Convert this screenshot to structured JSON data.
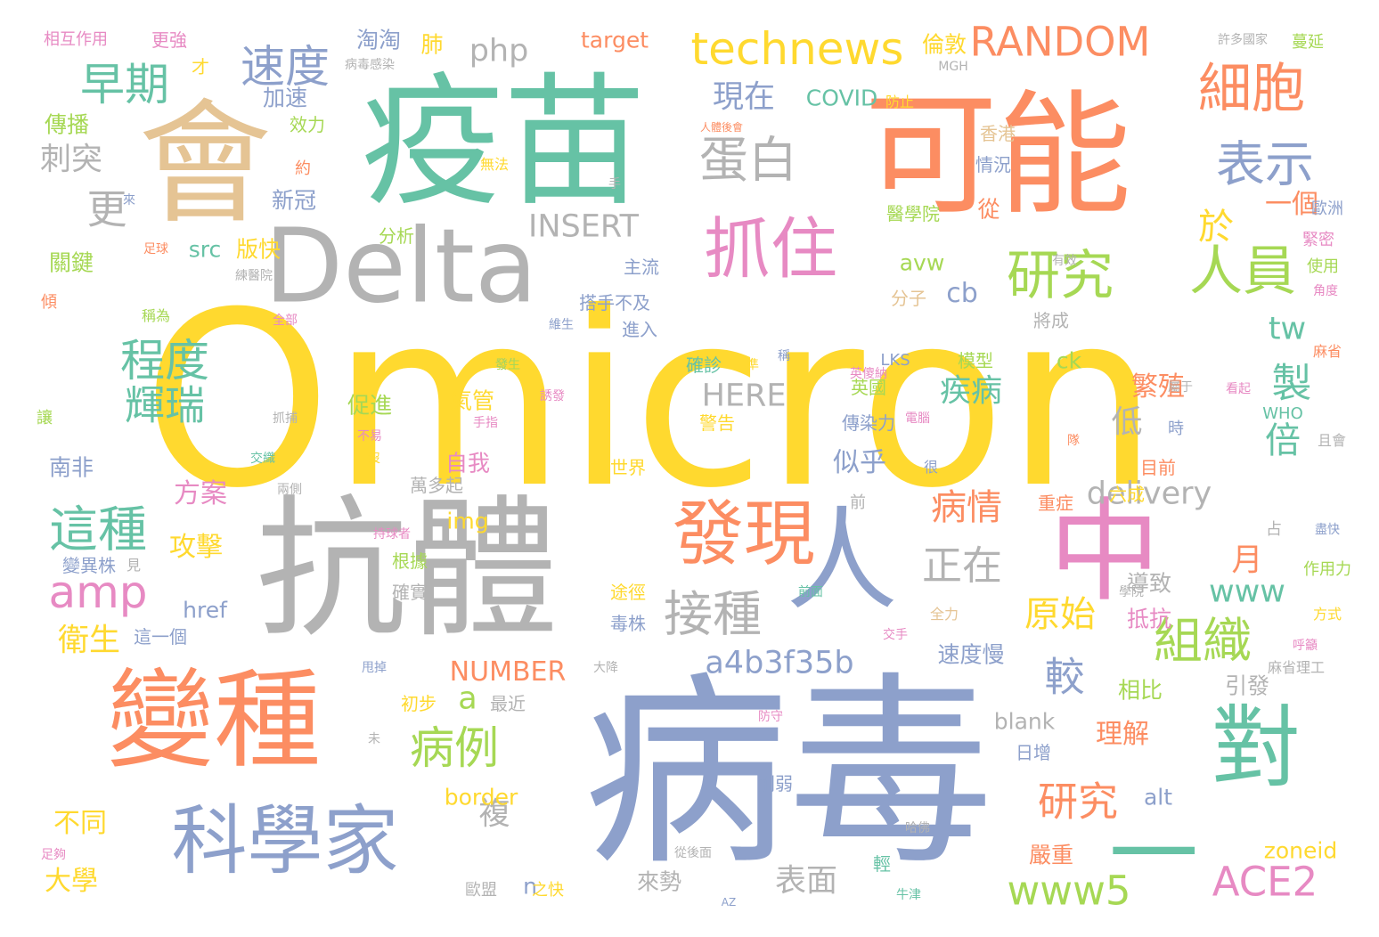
{
  "palette": {
    "yellow": "#ffd92f",
    "teal": "#66c2a5",
    "orange": "#fc8d62",
    "blue": "#8da0cb",
    "gray": "#b3b3b3",
    "tan": "#e5c494",
    "pink": "#e78ac3",
    "green": "#a6d854"
  },
  "words": [
    {
      "text": "Omicron",
      "color": "yellow"
    },
    {
      "text": "病毒",
      "color": "blue"
    },
    {
      "text": "抗體",
      "color": "gray"
    },
    {
      "text": "疫苗",
      "color": "teal"
    },
    {
      "text": "可能",
      "color": "orange"
    },
    {
      "text": "會",
      "color": "tan"
    },
    {
      "text": "變種",
      "color": "orange"
    },
    {
      "text": "中",
      "color": "pink"
    },
    {
      "text": "人",
      "color": "blue"
    },
    {
      "text": "Delta",
      "color": "gray"
    },
    {
      "text": "對",
      "color": "teal"
    },
    {
      "text": "科學家",
      "color": "blue"
    },
    {
      "text": "發現",
      "color": "orange"
    },
    {
      "text": "抓住",
      "color": "pink"
    },
    {
      "text": "研究",
      "color": "green"
    },
    {
      "text": "人員",
      "color": "green"
    },
    {
      "text": "一",
      "color": "teal"
    },
    {
      "text": "細胞",
      "color": "orange"
    },
    {
      "text": "蛋白",
      "color": "gray"
    },
    {
      "text": "表示",
      "color": "blue"
    },
    {
      "text": "technews",
      "color": "yellow"
    },
    {
      "text": "RANDOM",
      "color": "orange"
    },
    {
      "text": "速度",
      "color": "blue"
    },
    {
      "text": "早期",
      "color": "teal"
    },
    {
      "text": "更",
      "color": "gray"
    },
    {
      "text": "程度",
      "color": "teal"
    },
    {
      "text": "輝瑞",
      "color": "teal"
    },
    {
      "text": "這種",
      "color": "teal"
    },
    {
      "text": "amp",
      "color": "pink"
    },
    {
      "text": "接種",
      "color": "gray"
    },
    {
      "text": "組織",
      "color": "green"
    },
    {
      "text": "ACE2",
      "color": "pink"
    },
    {
      "text": "www5",
      "color": "green"
    },
    {
      "text": "病例",
      "color": "green"
    },
    {
      "text": "研究",
      "color": "orange"
    },
    {
      "text": "正在",
      "color": "gray"
    },
    {
      "text": "病情",
      "color": "orange"
    },
    {
      "text": "原始",
      "color": "yellow"
    },
    {
      "text": "較",
      "color": "blue"
    },
    {
      "text": "delivery",
      "color": "gray"
    },
    {
      "text": "www",
      "color": "teal"
    },
    {
      "text": "a4b3f35b",
      "color": "blue"
    },
    {
      "text": "php",
      "color": "gray"
    },
    {
      "text": "INSERT",
      "color": "gray"
    },
    {
      "text": "HERE",
      "color": "gray"
    },
    {
      "text": "NUMBER",
      "color": "orange"
    },
    {
      "text": "現在",
      "color": "blue"
    },
    {
      "text": "於",
      "color": "yellow"
    },
    {
      "text": "一個",
      "color": "orange"
    },
    {
      "text": "製",
      "color": "teal"
    },
    {
      "text": "倍",
      "color": "teal"
    },
    {
      "text": "tw",
      "color": "teal"
    },
    {
      "text": "cb",
      "color": "blue"
    },
    {
      "text": "月",
      "color": "orange"
    },
    {
      "text": "疾病",
      "color": "teal"
    },
    {
      "text": "繁殖",
      "color": "orange"
    },
    {
      "text": "低",
      "color": "gray"
    },
    {
      "text": "似乎",
      "color": "blue"
    },
    {
      "text": "攻擊",
      "color": "yellow"
    },
    {
      "text": "方案",
      "color": "pink"
    },
    {
      "text": "衛生",
      "color": "yellow"
    },
    {
      "text": "複",
      "color": "gray"
    },
    {
      "text": "表面",
      "color": "gray"
    },
    {
      "text": "大學",
      "color": "yellow"
    },
    {
      "text": "不同",
      "color": "yellow"
    },
    {
      "text": "刺突",
      "color": "gray"
    },
    {
      "text": "理解",
      "color": "orange"
    },
    {
      "text": "引發",
      "color": "gray"
    },
    {
      "text": "嚴重",
      "color": "orange"
    },
    {
      "text": "來勢",
      "color": "gray"
    },
    {
      "text": "target",
      "color": "orange"
    },
    {
      "text": "淘淘",
      "color": "blue"
    },
    {
      "text": "肺",
      "color": "yellow"
    },
    {
      "text": "加速",
      "color": "blue"
    },
    {
      "text": "COVID",
      "color": "teal"
    },
    {
      "text": "倫敦",
      "color": "yellow"
    },
    {
      "text": "傳播",
      "color": "green"
    },
    {
      "text": "新冠",
      "color": "blue"
    },
    {
      "text": "從",
      "color": "orange"
    },
    {
      "text": "關鍵",
      "color": "green"
    },
    {
      "text": "src",
      "color": "teal"
    },
    {
      "text": "版快",
      "color": "yellow"
    },
    {
      "text": "avw",
      "color": "green"
    },
    {
      "text": "ck",
      "color": "green"
    },
    {
      "text": "href",
      "color": "blue"
    },
    {
      "text": "img",
      "color": "yellow"
    },
    {
      "text": "border",
      "color": "yellow"
    },
    {
      "text": "blank",
      "color": "gray"
    },
    {
      "text": "alt",
      "color": "blue"
    },
    {
      "text": "zoneid",
      "color": "yellow"
    },
    {
      "text": "n",
      "color": "blue"
    },
    {
      "text": "a",
      "color": "green"
    },
    {
      "text": "自我",
      "color": "pink"
    },
    {
      "text": "氣管",
      "color": "yellow"
    },
    {
      "text": "促進",
      "color": "green"
    },
    {
      "text": "南非",
      "color": "blue"
    },
    {
      "text": "速度慢",
      "color": "blue"
    },
    {
      "text": "相比",
      "color": "green"
    },
    {
      "text": "初步",
      "color": "yellow"
    },
    {
      "text": "最近",
      "color": "gray"
    },
    {
      "text": "導致",
      "color": "gray"
    },
    {
      "text": "抵抗",
      "color": "pink"
    },
    {
      "text": "確實",
      "color": "gray"
    },
    {
      "text": "根據",
      "color": "green"
    },
    {
      "text": "萬多起",
      "color": "gray"
    },
    {
      "text": "模型",
      "color": "green"
    },
    {
      "text": "確診",
      "color": "teal"
    },
    {
      "text": "英國",
      "color": "green"
    },
    {
      "text": "警告",
      "color": "yellow"
    },
    {
      "text": "傳染力",
      "color": "blue"
    },
    {
      "text": "醫學院",
      "color": "green"
    },
    {
      "text": "情況",
      "color": "blue"
    },
    {
      "text": "香港",
      "color": "tan"
    },
    {
      "text": "分析",
      "color": "green"
    },
    {
      "text": "主流",
      "color": "blue"
    },
    {
      "text": "搭手不及",
      "color": "blue"
    },
    {
      "text": "進入",
      "color": "blue"
    },
    {
      "text": "將成",
      "color": "gray"
    },
    {
      "text": "分子",
      "color": "tan"
    },
    {
      "text": "效力",
      "color": "green"
    },
    {
      "text": "防止",
      "color": "yellow"
    },
    {
      "text": "相互作用",
      "color": "pink"
    },
    {
      "text": "更強",
      "color": "pink"
    },
    {
      "text": "才",
      "color": "yellow"
    },
    {
      "text": "約",
      "color": "orange"
    },
    {
      "text": "無法",
      "color": "yellow"
    },
    {
      "text": "使用",
      "color": "green"
    },
    {
      "text": "歐洲",
      "color": "blue"
    },
    {
      "text": "緊密",
      "color": "pink"
    },
    {
      "text": "許多國家",
      "color": "gray"
    },
    {
      "text": "蔓延",
      "color": "green"
    },
    {
      "text": "MGH",
      "color": "gray"
    },
    {
      "text": "日增",
      "color": "blue"
    },
    {
      "text": "輕",
      "color": "teal"
    },
    {
      "text": "之快",
      "color": "yellow"
    },
    {
      "text": "歐盟",
      "color": "gray"
    },
    {
      "text": "毒株",
      "color": "blue"
    },
    {
      "text": "途徑",
      "color": "yellow"
    },
    {
      "text": "削弱",
      "color": "blue"
    },
    {
      "text": "世界",
      "color": "yellow"
    },
    {
      "text": "目前",
      "color": "orange"
    },
    {
      "text": "六成",
      "color": "yellow"
    },
    {
      "text": "重症",
      "color": "orange"
    },
    {
      "text": "WHO",
      "color": "teal"
    },
    {
      "text": "時",
      "color": "blue"
    },
    {
      "text": "且會",
      "color": "gray"
    },
    {
      "text": "麻省",
      "color": "orange"
    },
    {
      "text": "麻省理工",
      "color": "gray"
    },
    {
      "text": "作用力",
      "color": "green"
    },
    {
      "text": "占",
      "color": "gray"
    },
    {
      "text": "盡快",
      "color": "blue"
    },
    {
      "text": "方式",
      "color": "yellow"
    },
    {
      "text": "呼籲",
      "color": "pink"
    },
    {
      "text": "學院",
      "color": "gray"
    },
    {
      "text": "變異株",
      "color": "blue"
    },
    {
      "text": "見",
      "color": "gray"
    },
    {
      "text": "這一個",
      "color": "blue"
    },
    {
      "text": "交手",
      "color": "pink"
    },
    {
      "text": "讓",
      "color": "green"
    },
    {
      "text": "傾",
      "color": "orange"
    },
    {
      "text": "稱為",
      "color": "green"
    },
    {
      "text": "足球",
      "color": "orange"
    },
    {
      "text": "練醫院",
      "color": "gray"
    },
    {
      "text": "全部",
      "color": "pink"
    },
    {
      "text": "抓捕",
      "color": "gray"
    },
    {
      "text": "交織",
      "color": "teal"
    },
    {
      "text": "兩側",
      "color": "gray"
    },
    {
      "text": "不易",
      "color": "pink"
    },
    {
      "text": "沒",
      "color": "yellow"
    },
    {
      "text": "持球者",
      "color": "pink"
    },
    {
      "text": "誘發",
      "color": "pink"
    },
    {
      "text": "電腦",
      "color": "pink"
    },
    {
      "text": "英傻納",
      "color": "pink"
    },
    {
      "text": "LKS",
      "color": "blue"
    },
    {
      "text": "前",
      "color": "gray"
    },
    {
      "text": "很",
      "color": "blue"
    },
    {
      "text": "前面",
      "color": "teal"
    },
    {
      "text": "全力",
      "color": "tan"
    },
    {
      "text": "大降",
      "color": "gray"
    },
    {
      "text": "甩掉",
      "color": "blue"
    },
    {
      "text": "未",
      "color": "gray"
    },
    {
      "text": "防守",
      "color": "pink"
    },
    {
      "text": "哈佛",
      "color": "gray"
    },
    {
      "text": "從後面",
      "color": "gray"
    },
    {
      "text": "牛津",
      "color": "teal"
    },
    {
      "text": "AZ",
      "color": "blue"
    },
    {
      "text": "足夠",
      "color": "pink"
    },
    {
      "text": "有效",
      "color": "gray"
    },
    {
      "text": "角度",
      "color": "pink"
    },
    {
      "text": "看起",
      "color": "pink"
    },
    {
      "text": "隊",
      "color": "orange"
    },
    {
      "text": "稱",
      "color": "blue"
    },
    {
      "text": "準",
      "color": "yellow"
    },
    {
      "text": "手",
      "color": "gray"
    },
    {
      "text": "來",
      "color": "blue"
    },
    {
      "text": "病毒感染",
      "color": "gray"
    },
    {
      "text": "人體後會",
      "color": "orange"
    },
    {
      "text": "發生",
      "color": "gray"
    },
    {
      "text": "發生",
      "color": "green"
    },
    {
      "text": "手指",
      "color": "pink"
    },
    {
      "text": "屬于",
      "color": "gray"
    },
    {
      "text": "維生",
      "color": "blue"
    }
  ]
}
